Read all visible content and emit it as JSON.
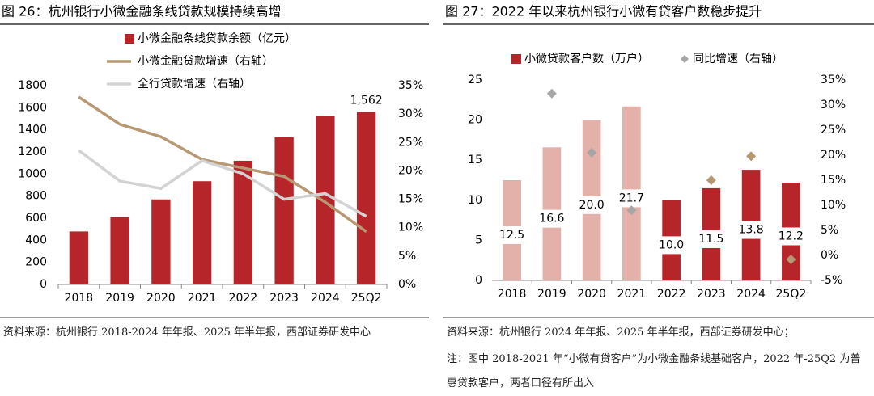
{
  "chart_data": [
    {
      "type": "bar",
      "title": "图 26：杭州银行小微金融条线贷款规模持续高增",
      "source": "资料来源：杭州银行 2018-2024 年年报、2025 年半年报，西部证券研发中心",
      "categories": [
        "2018",
        "2019",
        "2020",
        "2021",
        "2022",
        "2023",
        "2024",
        "25Q2"
      ],
      "legend": "upper left",
      "series": [
        {
          "name": "小微金融条线贷款余额（亿元）",
          "type": "bar",
          "color": "#b5252a",
          "values": [
            480,
            610,
            770,
            935,
            1120,
            1335,
            1525,
            1562
          ],
          "value_labels": [
            null,
            null,
            null,
            null,
            null,
            null,
            null,
            "1,562"
          ]
        },
        {
          "name": "小微金融贷款增速（右轴）",
          "type": "line",
          "axis": "y2",
          "color": "#b89872",
          "values": [
            33,
            28.2,
            26,
            22,
            20.5,
            19,
            14.5,
            9.3
          ]
        },
        {
          "name": "全行贷款增速（右轴）",
          "type": "line",
          "axis": "y2",
          "color": "#d3d3d3",
          "values": [
            23.6,
            18.2,
            16.9,
            21.8,
            19.5,
            15,
            16,
            12
          ]
        }
      ],
      "ylim": [
        0,
        1800
      ],
      "yticks": [
        0,
        200,
        400,
        600,
        800,
        1000,
        1200,
        1400,
        1600,
        1800
      ],
      "y2lim": [
        0,
        35
      ],
      "y2ticks": [
        {
          "value": 0,
          "label": "0%"
        },
        {
          "value": 5,
          "label": "5%"
        },
        {
          "value": 10,
          "label": "10%"
        },
        {
          "value": 15,
          "label": "15%"
        },
        {
          "value": 20,
          "label": "20%"
        },
        {
          "value": 25,
          "label": "25%"
        },
        {
          "value": 30,
          "label": "30%"
        },
        {
          "value": 35,
          "label": "35%"
        }
      ]
    },
    {
      "type": "bar",
      "title": "图 27：2022 年以来杭州银行小微有贷客户数稳步提升",
      "source": "资料来源：杭州银行 2024 年年报、2025 年半年报，西部证券研发中心；",
      "note": "注：图中 2018-2021 年“小微有贷客户”为小微金融条线基础客户，2022 年-25Q2 为普惠贷款客户，两者口径有所出入",
      "categories": [
        "2018",
        "2019",
        "2020",
        "2021",
        "2022",
        "2023",
        "2024",
        "25Q2"
      ],
      "legend": "upper center",
      "series": [
        {
          "name": "小微贷款客户数（万户）",
          "type": "bar",
          "color": "#b5252a",
          "colors": [
            "#e3b1aa",
            "#e3b1aa",
            "#e3b1aa",
            "#e3b1aa",
            "#b5252a",
            "#b5252a",
            "#b5252a",
            "#b5252a"
          ],
          "values": [
            12.5,
            16.6,
            20.0,
            21.7,
            10.0,
            11.5,
            13.8,
            12.2
          ],
          "value_labels": [
            "12.5",
            "16.6",
            "20.0",
            "21.7",
            "10.0",
            "11.5",
            "13.8",
            "12.2"
          ]
        },
        {
          "name": "同比增速（右轴）",
          "type": "scatter",
          "axis": "y2",
          "color": "#a6a6a6",
          "colors": [
            "#a6a6a6",
            "#a6a6a6",
            "#a6a6a6",
            "#a6a6a6",
            "#b89872",
            "#b89872",
            "#b89872",
            "#b89872"
          ],
          "values": [
            null,
            32.3,
            20.5,
            9,
            null,
            15,
            19.8,
            -0.8
          ]
        }
      ],
      "ylim": [
        0,
        25
      ],
      "yticks": [
        0,
        5,
        10,
        15,
        20,
        25
      ],
      "y2lim": [
        -5,
        35
      ],
      "y2ticks": [
        {
          "value": -5,
          "label": "-5%"
        },
        {
          "value": 0,
          "label": "0%"
        },
        {
          "value": 5,
          "label": "5%"
        },
        {
          "value": 10,
          "label": "10%"
        },
        {
          "value": 15,
          "label": "15%"
        },
        {
          "value": 20,
          "label": "20%"
        },
        {
          "value": 25,
          "label": "25%"
        },
        {
          "value": 30,
          "label": "30%"
        },
        {
          "value": 35,
          "label": "35%"
        }
      ]
    }
  ]
}
